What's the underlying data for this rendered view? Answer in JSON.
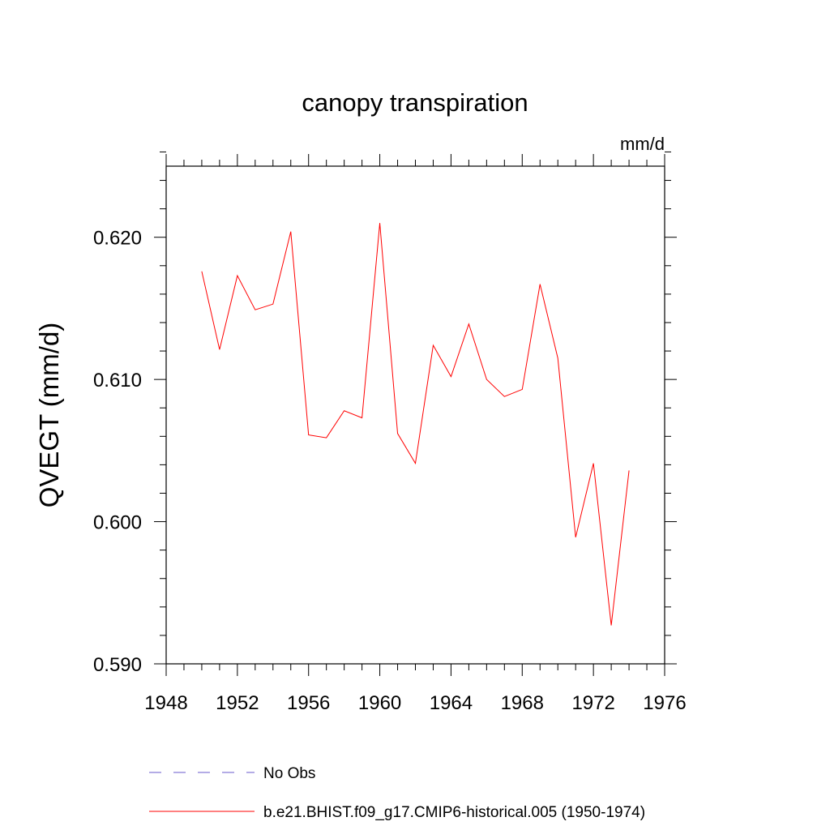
{
  "chart_data": {
    "type": "line",
    "title": "canopy transpiration",
    "units_label": "mm/d",
    "xlabel": "",
    "ylabel": "QVEGT  (mm/d)",
    "xlim": [
      1948,
      1976
    ],
    "ylim": [
      0.59,
      0.625
    ],
    "x_ticks": [
      1948,
      1952,
      1956,
      1960,
      1964,
      1968,
      1972,
      1976
    ],
    "x_tick_labels": [
      "1948",
      "1952",
      "1956",
      "1960",
      "1964",
      "1968",
      "1972",
      "1976"
    ],
    "y_ticks": [
      0.59,
      0.6,
      0.61,
      0.62
    ],
    "y_tick_labels": [
      "0.590",
      "0.600",
      "0.610",
      "0.620"
    ],
    "grid": false,
    "legend_placement": "bottom",
    "series": [
      {
        "name": "No Obs",
        "style": "dashed",
        "color": "#6a5acd",
        "x": [],
        "values": []
      },
      {
        "name": "b.e21.BHIST.f09_g17.CMIP6-historical.005 (1950-1974)",
        "style": "solid",
        "color": "#ff0000",
        "x": [
          1950,
          1951,
          1952,
          1953,
          1954,
          1955,
          1956,
          1957,
          1958,
          1959,
          1960,
          1961,
          1962,
          1963,
          1964,
          1965,
          1966,
          1967,
          1968,
          1969,
          1970,
          1971,
          1972,
          1973,
          1974
        ],
        "values": [
          0.6176,
          0.6121,
          0.6173,
          0.6149,
          0.6153,
          0.6204,
          0.6061,
          0.6059,
          0.6078,
          0.6073,
          0.621,
          0.6062,
          0.6041,
          0.6124,
          0.6102,
          0.6139,
          0.61,
          0.6088,
          0.6093,
          0.6167,
          0.6115,
          0.5989,
          0.6041,
          0.5927,
          0.6036
        ]
      }
    ]
  }
}
